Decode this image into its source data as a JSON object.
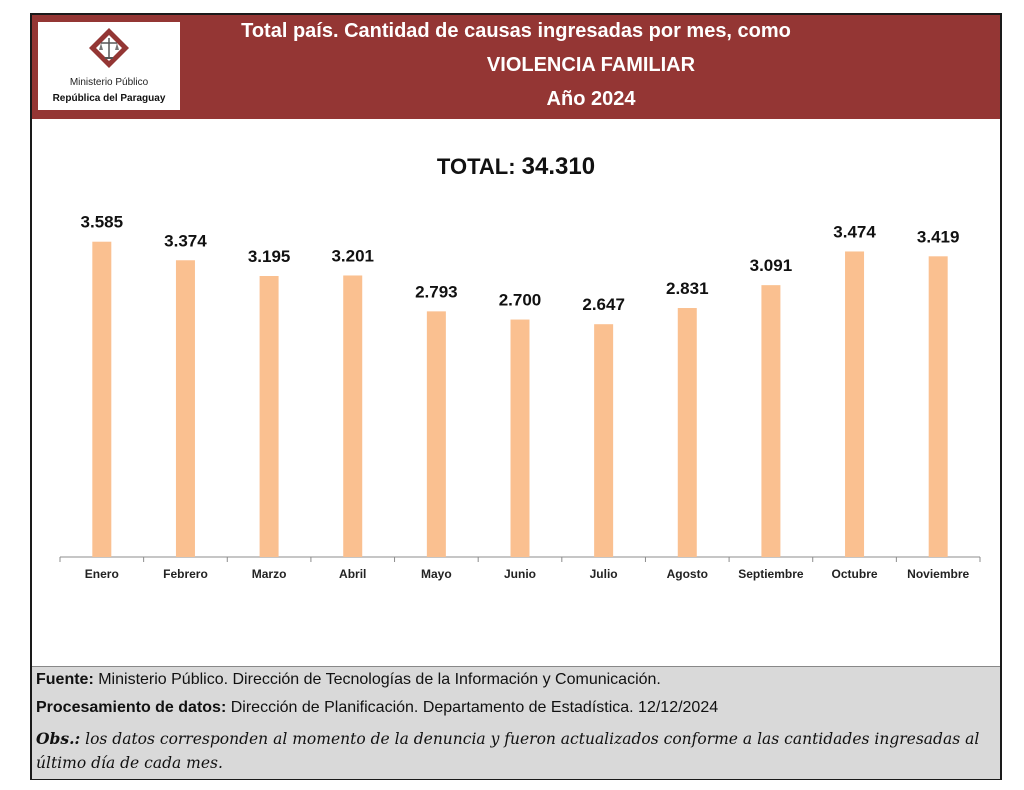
{
  "header": {
    "title_line1": "Total país. Cantidad de causas ingresadas por mes, como",
    "title_line2": "VIOLENCIA FAMILIAR",
    "title_line3": "Año 2024",
    "logo_text_line1": "Ministerio Público",
    "logo_text_line2": "República del Paraguay",
    "header_color": "#943634"
  },
  "total": {
    "label": "TOTAL:",
    "value": "34.310"
  },
  "chart_data": {
    "type": "bar",
    "categories": [
      "Enero",
      "Febrero",
      "Marzo",
      "Abril",
      "Mayo",
      "Junio",
      "Julio",
      "Agosto",
      "Septiembre",
      "Octubre",
      "Noviembre"
    ],
    "values": [
      3585,
      3374,
      3195,
      3201,
      2793,
      2700,
      2647,
      2831,
      3091,
      3474,
      3419
    ],
    "data_labels": [
      "3.585",
      "3.374",
      "3.195",
      "3.201",
      "2.793",
      "2.700",
      "2.647",
      "2.831",
      "3.091",
      "3.474",
      "3.419"
    ],
    "ylim": [
      0,
      3900
    ],
    "bar_color": "#fac090",
    "grid": false,
    "legend": "none"
  },
  "footer": {
    "source_label": "Fuente:",
    "source_text": " Ministerio Público. Dirección de Tecnologías de la Información y Comunicación.",
    "processing_label": "Procesamiento de datos:",
    "processing_text": " Dirección de Planificación. Departamento de Estadística. 12/12/2024",
    "obs_label": "Obs.:",
    "obs_text": " los datos corresponden al momento de la denuncia y fueron actualizados conforme a las cantidades ingresadas al último día de cada mes."
  }
}
